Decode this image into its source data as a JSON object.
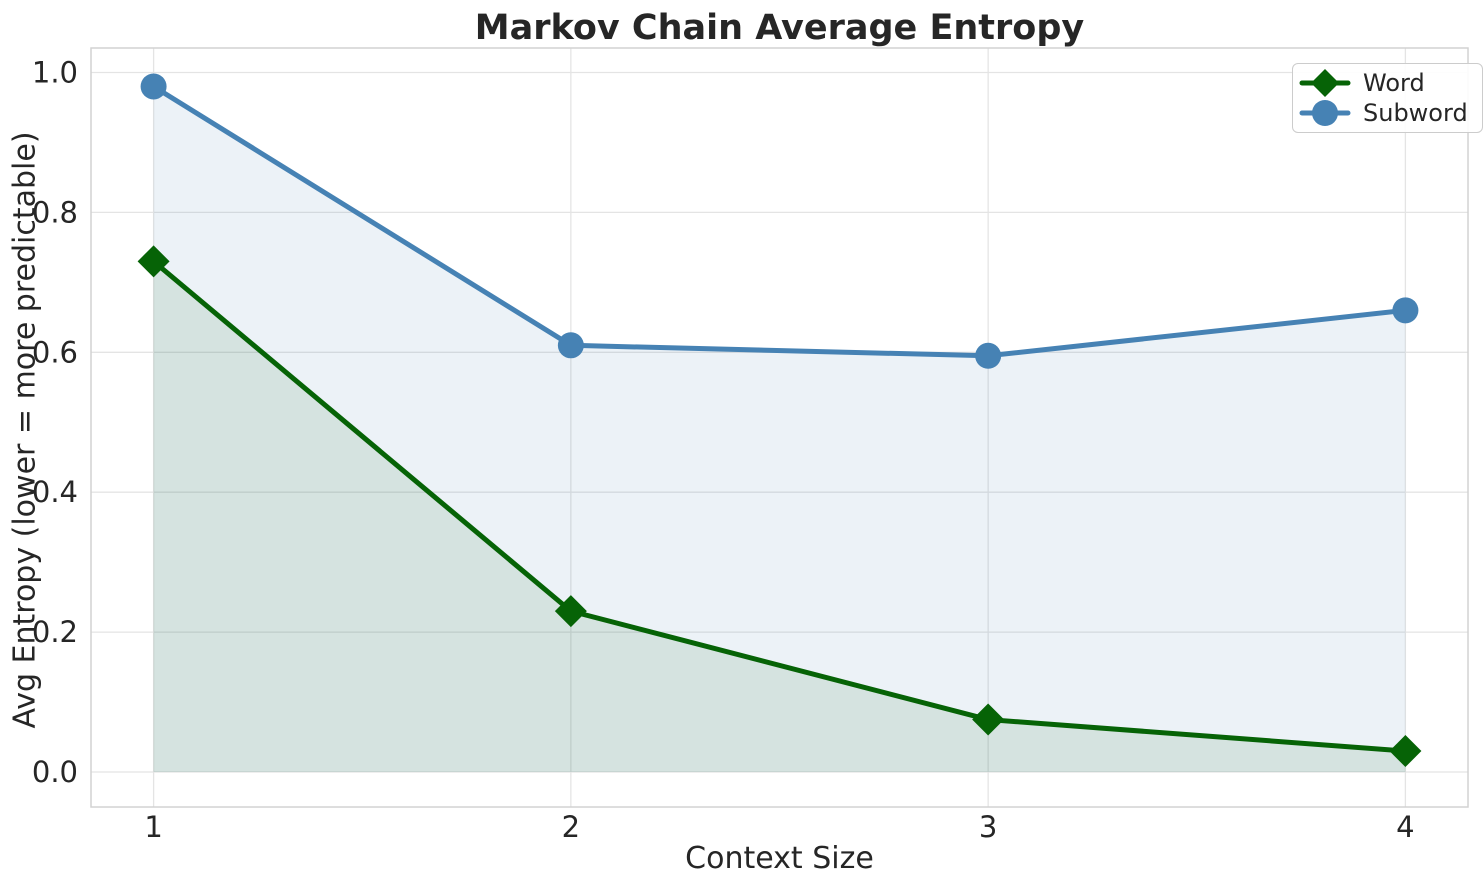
{
  "chart_data": {
    "type": "line",
    "title": "Markov Chain Average Entropy",
    "xlabel": "Context Size",
    "ylabel": "Avg Entropy (lower = more predictable)",
    "x": [
      1,
      2,
      3,
      4
    ],
    "series": [
      {
        "name": "Word",
        "values": [
          0.73,
          0.23,
          0.075,
          0.03
        ],
        "color": "#066306",
        "marker": "diamond",
        "fill": true
      },
      {
        "name": "Subword",
        "values": [
          0.98,
          0.61,
          0.595,
          0.66
        ],
        "color": "#4682B4",
        "marker": "circle",
        "fill": true
      }
    ],
    "xlim": [
      0.85,
      4.15
    ],
    "ylim": [
      -0.05,
      1.035
    ],
    "xticks": [
      1,
      2,
      3,
      4
    ],
    "xtick_labels": [
      "1",
      "2",
      "3",
      "4"
    ],
    "yticks": [
      0.0,
      0.2,
      0.4,
      0.6,
      0.8,
      1.0
    ],
    "ytick_labels": [
      "0.0",
      "0.2",
      "0.4",
      "0.6",
      "0.8",
      "1.0"
    ],
    "grid": true,
    "legend_position": "upper right",
    "fill_alpha": 0.1,
    "fill_baseline": 0.0
  }
}
